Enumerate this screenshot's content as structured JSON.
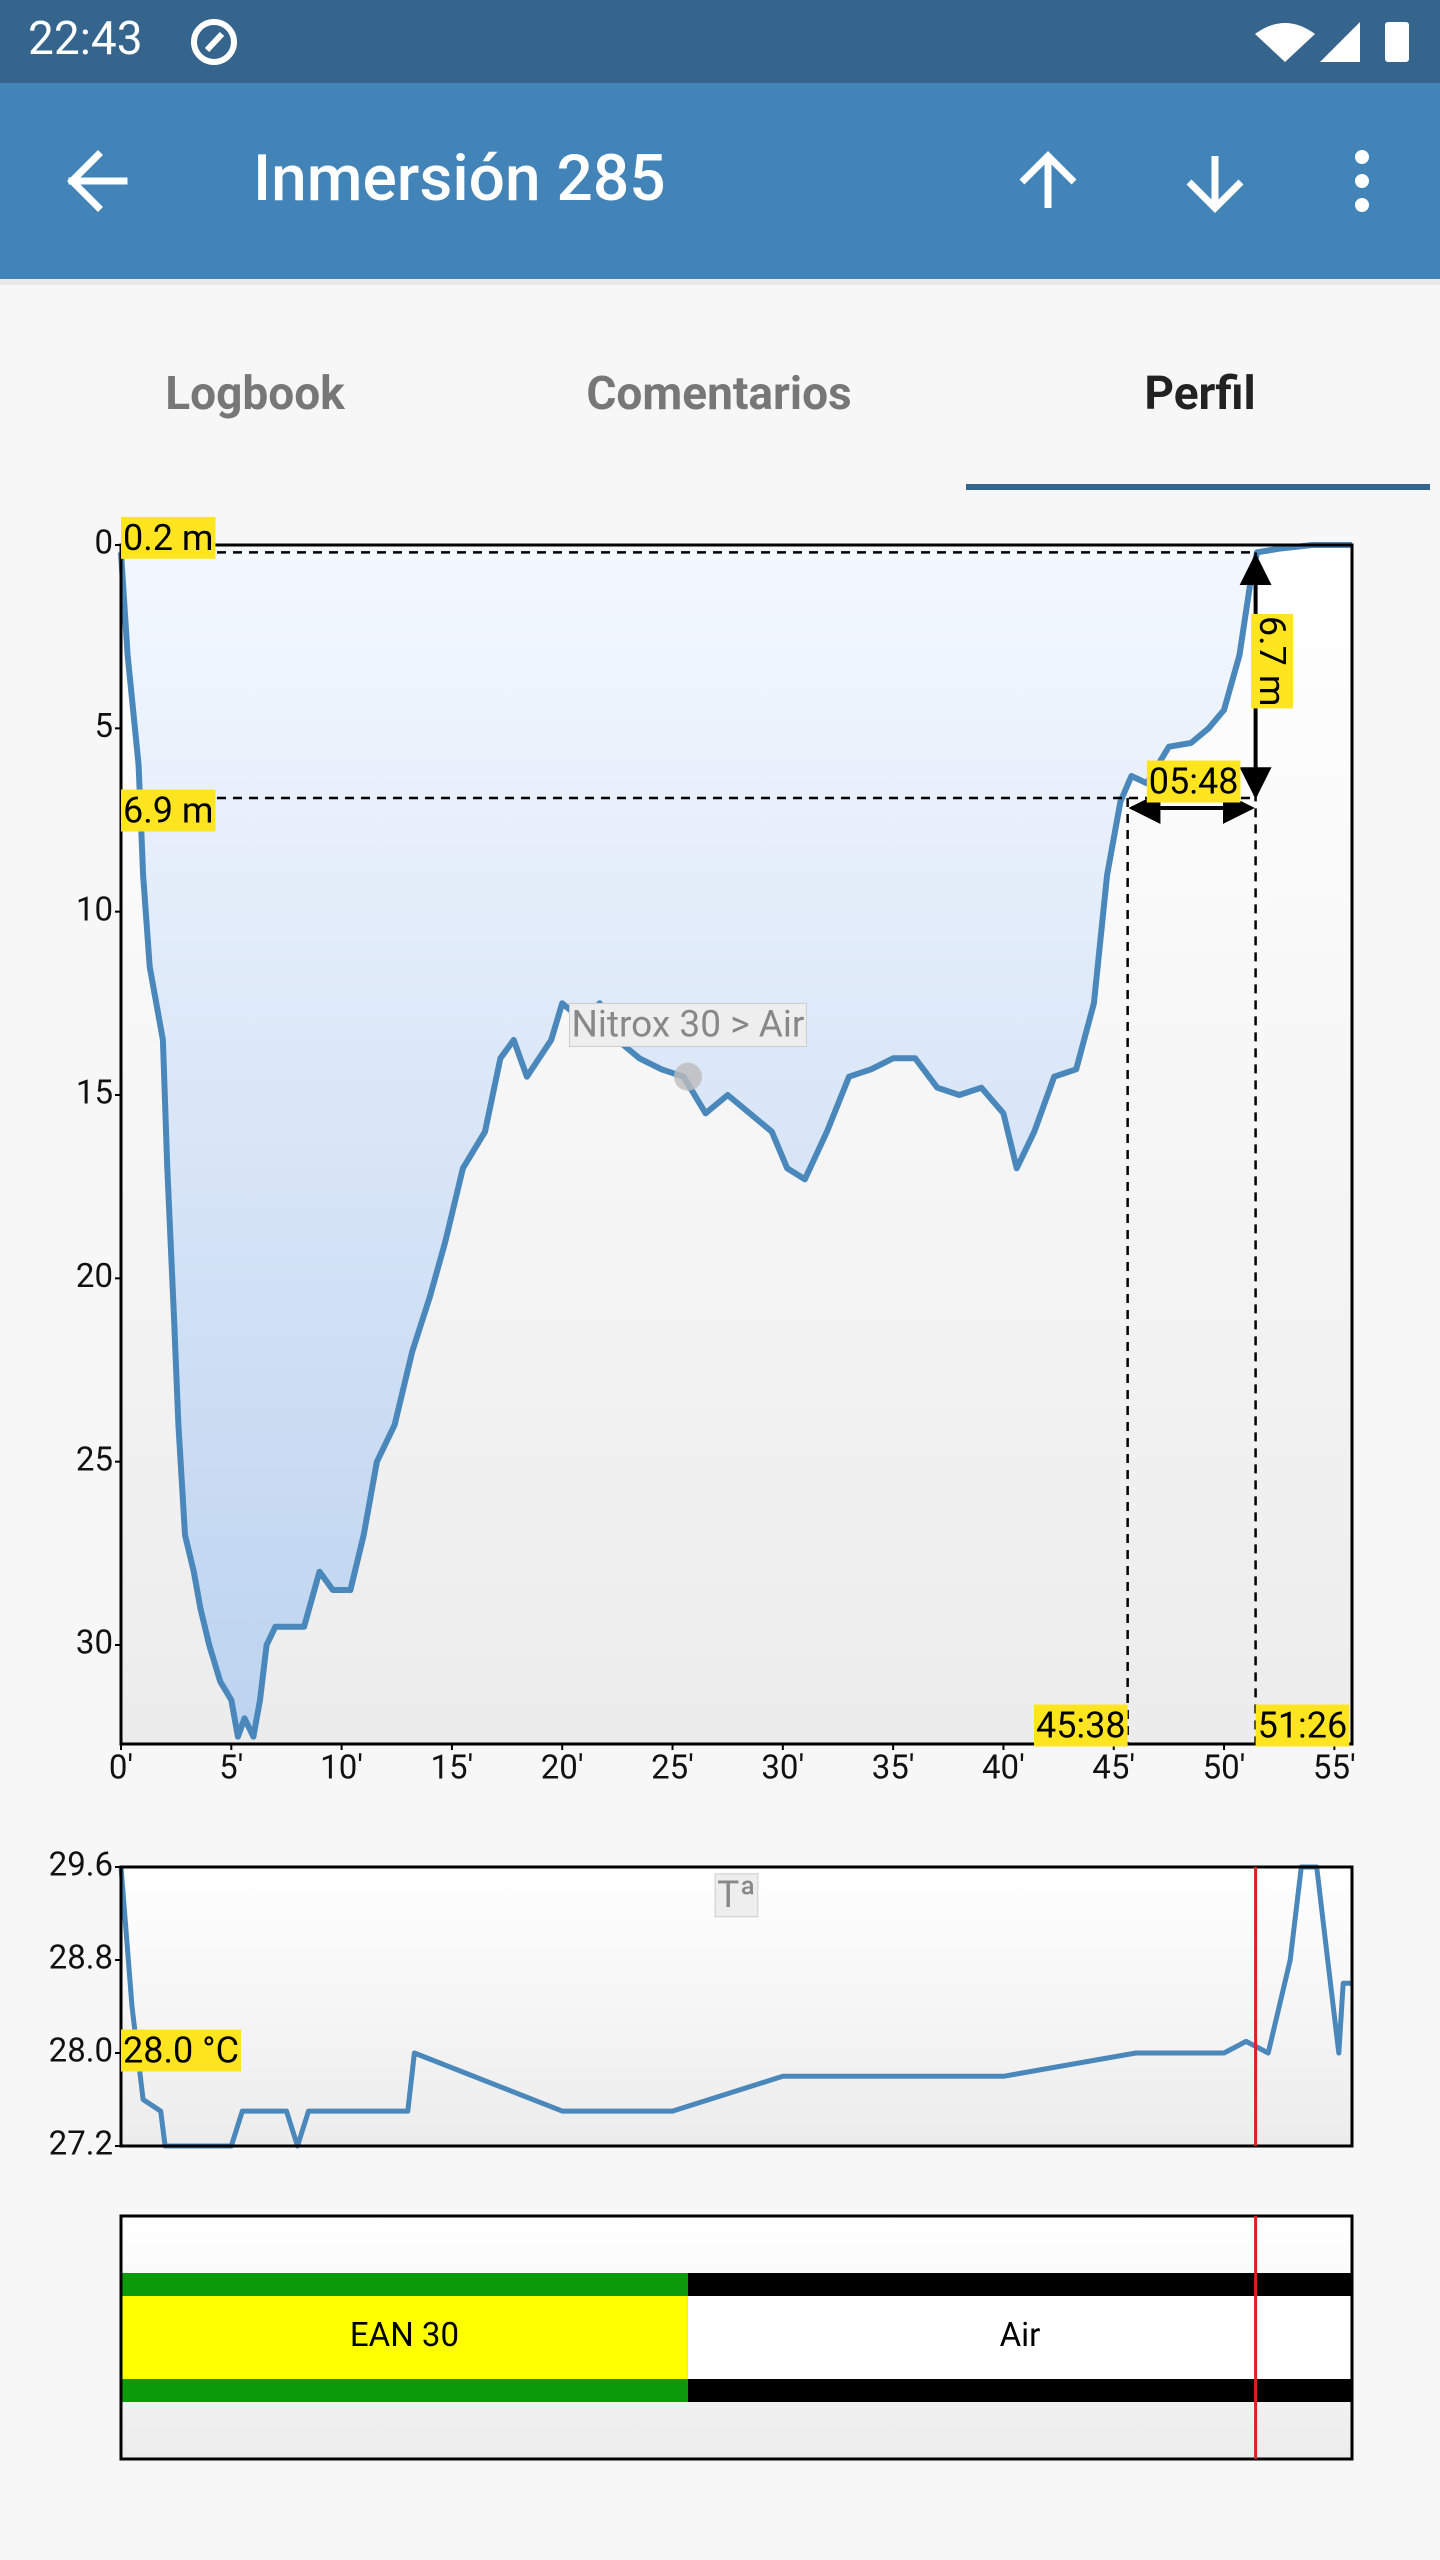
{
  "status_bar": {
    "time": "22:43"
  },
  "app_bar": {
    "title": "Inmersión 285"
  },
  "tabs": [
    "Logbook",
    "Comentarios",
    "Perfil"
  ],
  "selected_tab": 2,
  "chart_data": [
    {
      "type": "area",
      "color": "#4a87bb",
      "x": [
        0,
        0.3,
        0.8,
        1,
        1.3,
        1.6,
        1.9,
        2.1,
        2.4,
        2.6,
        2.9,
        3.3,
        3.6,
        4,
        4.5,
        5,
        5.3,
        5.6,
        6,
        6.3,
        6.6,
        7,
        7.6,
        8.3,
        9,
        9.6,
        10.4,
        11,
        11.6,
        12.4,
        13.2,
        14,
        14.7,
        15.5,
        16.5,
        17.2,
        17.8,
        18.4,
        19.5,
        20,
        21,
        21.7,
        22.5,
        23.5,
        24.5,
        25.5,
        26.5,
        27.5,
        28.5,
        29.5,
        30.2,
        31,
        32,
        33,
        34,
        35,
        36,
        37,
        38,
        39,
        40,
        40.6,
        41.4,
        42.3,
        43.3,
        44.1,
        44.7,
        45.3,
        45.8,
        46.5,
        47.5,
        48.5,
        49.3,
        50,
        50.7,
        51.2,
        51.5,
        52.5,
        54,
        55.8
      ],
      "values": [
        0.2,
        3,
        6,
        9,
        11.5,
        12.5,
        13.5,
        17,
        21,
        24,
        27,
        28,
        29,
        30,
        31,
        31.5,
        32.5,
        32,
        32.5,
        31.5,
        30,
        29.5,
        29.5,
        29.5,
        28,
        28.5,
        28.5,
        27,
        25,
        24,
        22,
        20.5,
        19,
        17,
        16,
        14,
        13.5,
        14.5,
        13.5,
        12.5,
        13,
        12.5,
        13.5,
        14,
        14.3,
        14.5,
        15.5,
        15,
        15.5,
        16,
        17,
        17.3,
        16,
        14.5,
        14.3,
        14,
        14,
        14.8,
        15,
        14.8,
        15.5,
        17,
        16,
        14.5,
        14.3,
        12.5,
        9,
        7,
        6.3,
        6.5,
        5.5,
        5.4,
        5,
        4.5,
        3,
        1,
        0.2,
        0.1,
        0,
        0
      ],
      "xlim": [
        0,
        55.8
      ],
      "ylim": [
        0,
        32.7
      ],
      "y_inverted": true,
      "xticks": [
        {
          "value": 0,
          "label": "0'"
        },
        {
          "value": 5,
          "label": "5'"
        },
        {
          "value": 10,
          "label": "10'"
        },
        {
          "value": 15,
          "label": "15'"
        },
        {
          "value": 20,
          "label": "20'"
        },
        {
          "value": 25,
          "label": "25'"
        },
        {
          "value": 30,
          "label": "30'"
        },
        {
          "value": 35,
          "label": "35'"
        },
        {
          "value": 40,
          "label": "40'"
        },
        {
          "value": 45,
          "label": "45'"
        },
        {
          "value": 50,
          "label": "50'"
        },
        {
          "value": 55,
          "label": "55'"
        }
      ],
      "yticks": [
        0,
        5,
        10,
        15,
        20,
        25,
        30
      ],
      "depth_markers": [
        {
          "value": 0.2,
          "label": "0.2 m"
        },
        {
          "value": 6.9,
          "label": "6.9 m"
        }
      ],
      "time_markers": [
        {
          "value": 45.63,
          "label": "45:38"
        },
        {
          "value": 51.43,
          "label": "51:26"
        }
      ],
      "depth_difference": {
        "value": 6.7,
        "label": "6.7 m"
      },
      "time_difference": {
        "value": 5.8,
        "label": "05:48"
      },
      "event": {
        "x": 25.7,
        "y": 14.5,
        "label": "Nitrox 30 > Air"
      }
    },
    {
      "type": "line",
      "label": "Tª",
      "color": "#4a87bb",
      "x": [
        0,
        0.5,
        1,
        1.8,
        2,
        5,
        5.5,
        7.5,
        8,
        8.5,
        13,
        13.3,
        20,
        25,
        30,
        40,
        46,
        50,
        51,
        52,
        53,
        53.5,
        54.2,
        54.7,
        55.2,
        55.4,
        55.8
      ],
      "values": [
        29.6,
        28.4,
        27.6,
        27.5,
        27.2,
        27.2,
        27.5,
        27.5,
        27.2,
        27.5,
        27.5,
        28.0,
        27.5,
        27.5,
        27.8,
        27.8,
        28.0,
        28.0,
        28.1,
        28.0,
        28.8,
        29.6,
        29.6,
        28.8,
        28.0,
        28.6,
        28.6
      ],
      "xlim": [
        0,
        55.8
      ],
      "ylim": [
        27.2,
        29.6
      ],
      "yticks": [
        27.2,
        {
          "value": 28,
          "label": "28.0"
        },
        28.8,
        29.6
      ],
      "marker": {
        "value": 28,
        "label": "28.0 °C"
      },
      "cursor": 51.43
    },
    {
      "type": "timeline",
      "xlim": [
        0,
        55.8
      ],
      "cursor": 51.43,
      "segments": [
        {
          "name": "EAN 30",
          "start": 0,
          "end": 25.7,
          "color": "#ffff00",
          "edge_color": "#0a9a0a"
        },
        {
          "name": "Air",
          "start": 25.7,
          "end": 55.8,
          "color": "#ffffff",
          "edge_color": "#000000"
        }
      ]
    }
  ]
}
